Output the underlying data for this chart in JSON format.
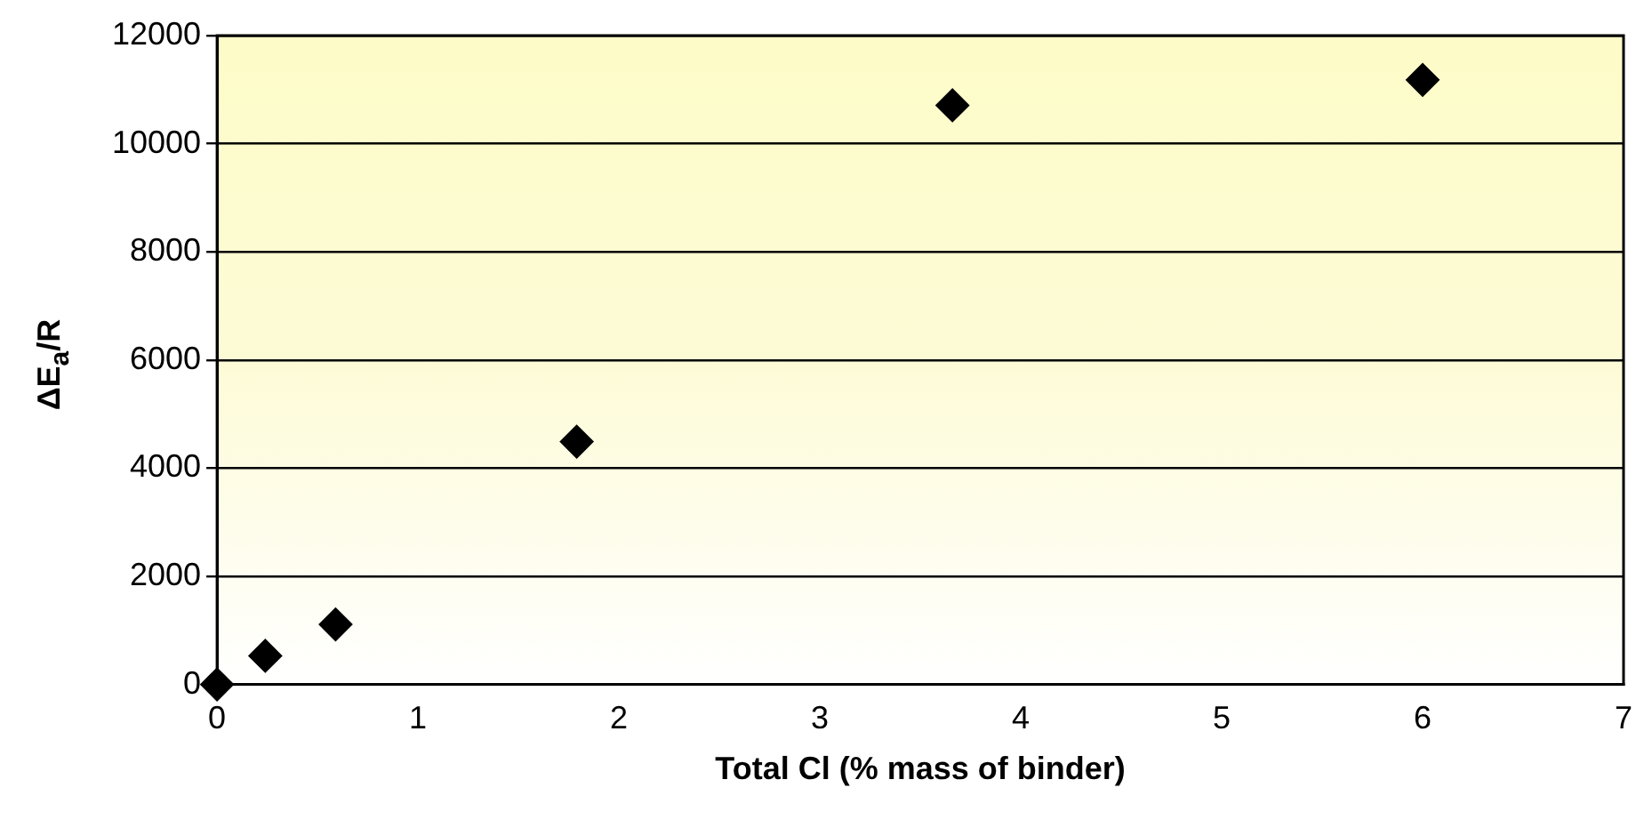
{
  "chart_data": {
    "type": "scatter",
    "xlabel": "Total Cl (% mass of binder)",
    "ylabel": "ΔE$_{a}$/R",
    "x": [
      0,
      0.24,
      0.59,
      1.79,
      3.66,
      6.0
    ],
    "series": [
      {
        "color": "#000000",
        "values": [
          0,
          530,
          1110,
          4490,
          10710,
          11180
        ]
      }
    ],
    "xlim": [
      0,
      7
    ],
    "xticks": [
      0,
      1,
      2,
      3,
      4,
      5,
      6,
      7
    ],
    "ylim": [
      0,
      12000
    ],
    "yticks": [
      0,
      2000,
      4000,
      6000,
      8000,
      10000,
      12000
    ],
    "grid": "y",
    "legend": false,
    "marker": "diamond"
  }
}
